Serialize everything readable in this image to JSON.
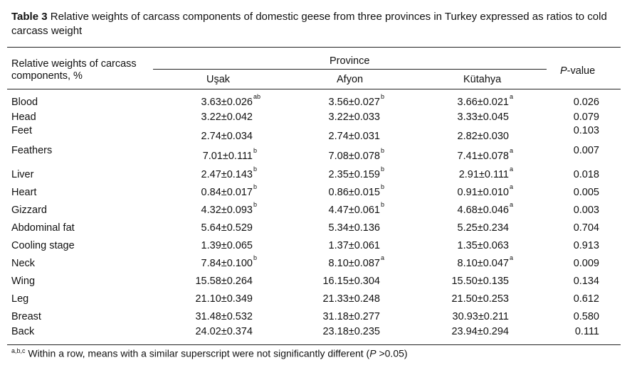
{
  "caption": {
    "label": "Table 3",
    "text": " Relative weights of carcass components of domestic geese from three provinces in Turkey expressed as ratios to cold carcass weight"
  },
  "header": {
    "row_label": "Relative weights of carcass components, %",
    "group": "Province",
    "columns": [
      "Uşak",
      "Afyon",
      "Kütahya"
    ],
    "pvalue_italic": "P",
    "pvalue_rest": "-value"
  },
  "rows": [
    {
      "label": "Blood",
      "values": [
        "3.63±0.026",
        "3.56±0.027",
        "3.66±0.021"
      ],
      "sups": [
        "ab",
        "b",
        "a"
      ],
      "p": "0.026"
    },
    {
      "label": "Head",
      "values": [
        "3.22±0.042",
        "3.22±0.033",
        "3.33±0.045"
      ],
      "sups": [
        "",
        "",
        ""
      ],
      "p": "0.079"
    },
    {
      "label": "Feet",
      "values": [
        "2.74±0.034",
        "2.74±0.031",
        "2.82±0.030"
      ],
      "sups": [
        "",
        "",
        ""
      ],
      "p": "0.103"
    },
    {
      "label": "Feathers",
      "values": [
        "7.01±0.111",
        "7.08±0.078",
        "7.41±0.078"
      ],
      "sups": [
        "b",
        "b",
        "a"
      ],
      "p": "0.007"
    },
    {
      "label": "Liver",
      "values": [
        "2.47±0.143",
        "2.35±0.159",
        "2.91±0.111"
      ],
      "sups": [
        "b",
        "b",
        "a"
      ],
      "p": "0.018"
    },
    {
      "label": "Heart",
      "values": [
        "0.84±0.017",
        "0.86±0.015",
        "0.91±0.010"
      ],
      "sups": [
        "b",
        "b",
        "a"
      ],
      "p": "0.005"
    },
    {
      "label": "Gizzard",
      "values": [
        "4.32±0.093",
        "4.47±0.061",
        "4.68±0.046"
      ],
      "sups": [
        "b",
        "b",
        "a"
      ],
      "p": "0.003"
    },
    {
      "label": "Abdominal fat",
      "values": [
        "5.64±0.529",
        "5.34±0.136",
        "5.25±0.234"
      ],
      "sups": [
        "",
        "",
        ""
      ],
      "p": "0.704"
    },
    {
      "label": "Cooling stage",
      "values": [
        "1.39±0.065",
        "1.37±0.061",
        "1.35±0.063"
      ],
      "sups": [
        "",
        "",
        ""
      ],
      "p": "0.913"
    },
    {
      "label": "Neck",
      "values": [
        "7.84±0.100",
        "8.10±0.087",
        "8.10±0.047"
      ],
      "sups": [
        "b",
        "a",
        "a"
      ],
      "p": "0.009"
    },
    {
      "label": "Wing",
      "values": [
        "15.58±0.264",
        "16.15±0.304",
        "15.50±0.135"
      ],
      "sups": [
        "",
        "",
        ""
      ],
      "p": "0.134"
    },
    {
      "label": "Leg",
      "values": [
        "21.10±0.349",
        "21.33±0.248",
        "21.50±0.253"
      ],
      "sups": [
        "",
        "",
        ""
      ],
      "p": "0.612"
    },
    {
      "label": "Breast",
      "values": [
        "31.48±0.532",
        "31.18±0.277",
        "30.93±0.211"
      ],
      "sups": [
        "",
        "",
        ""
      ],
      "p": "0.580"
    },
    {
      "label": "Back",
      "values": [
        "24.02±0.374",
        "23.18±0.235",
        "23.94±0.294"
      ],
      "sups": [
        "",
        "",
        ""
      ],
      "p": "0.111"
    }
  ],
  "footnote": {
    "sup": "a,b,c",
    "text": " Within a row, means with a similar superscript were not significantly different (",
    "p_italic": "P",
    "end": " >0.05)"
  }
}
